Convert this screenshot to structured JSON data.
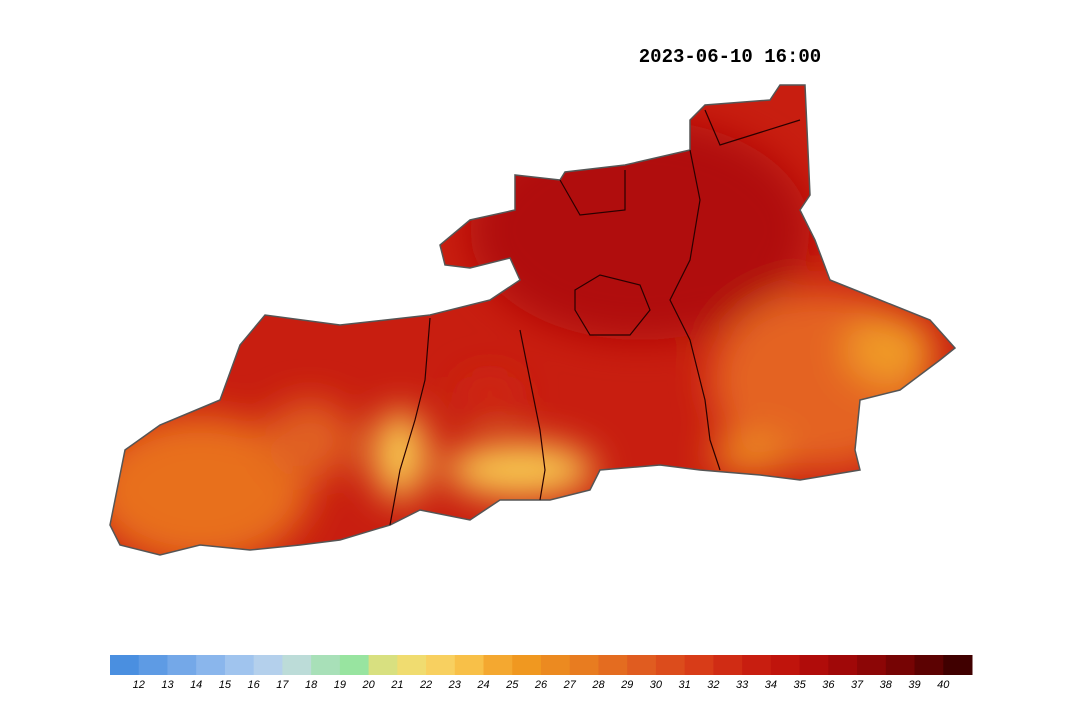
{
  "title": "2023-06-10 16:00",
  "colorbar": {
    "ticks": [
      12,
      13,
      14,
      15,
      16,
      17,
      18,
      19,
      20,
      21,
      22,
      23,
      24,
      25,
      26,
      27,
      28,
      29,
      30,
      31,
      32,
      33,
      34,
      35,
      36,
      37,
      38,
      39,
      40
    ],
    "colors": [
      "#4a8fe0",
      "#5e9be4",
      "#74a8e8",
      "#8ab6ec",
      "#a0c4ee",
      "#b4d0ec",
      "#bcdcd8",
      "#a8e0b8",
      "#98e4a0",
      "#d8e080",
      "#f0dc70",
      "#f8d060",
      "#f8c048",
      "#f4a830",
      "#f09820",
      "#ec8a20",
      "#e87c20",
      "#e46c20",
      "#e05c20",
      "#dc4c1c",
      "#d83c18",
      "#d02c14",
      "#c81e10",
      "#c0140c",
      "#b00c0a",
      "#a00808",
      "#8c0606",
      "#760404",
      "#5c0202",
      "#400000"
    ]
  }
}
